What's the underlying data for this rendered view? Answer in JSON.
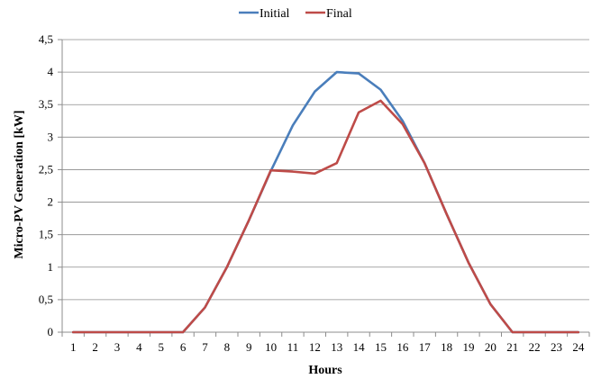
{
  "chart_data": {
    "type": "line",
    "xlabel": "Hours",
    "ylabel": "Micro-PV Generation [kW]",
    "x": [
      1,
      2,
      3,
      4,
      5,
      6,
      7,
      8,
      9,
      10,
      11,
      12,
      13,
      14,
      15,
      16,
      17,
      18,
      19,
      20,
      21,
      22,
      23,
      24
    ],
    "ylim": [
      0,
      4.5
    ],
    "yticks": [
      "0",
      "0,5",
      "1",
      "1,5",
      "2",
      "2,5",
      "3",
      "3,5",
      "4",
      "4,5"
    ],
    "grid": true,
    "legend_position": "top",
    "series": [
      {
        "name": "Initial",
        "color": "#4a7ebb",
        "values": [
          0,
          0,
          0,
          0,
          0,
          0,
          0.38,
          1.0,
          1.72,
          2.48,
          3.18,
          3.7,
          4.0,
          3.98,
          3.73,
          3.25,
          2.6,
          1.82,
          1.07,
          0.43,
          0,
          0,
          0,
          0
        ]
      },
      {
        "name": "Final",
        "color": "#be4b48",
        "values": [
          0,
          0,
          0,
          0,
          0,
          0,
          0.38,
          1.0,
          1.72,
          2.49,
          2.47,
          2.44,
          2.6,
          3.38,
          3.56,
          3.2,
          2.6,
          1.82,
          1.07,
          0.43,
          0,
          0,
          0,
          0
        ]
      }
    ]
  }
}
